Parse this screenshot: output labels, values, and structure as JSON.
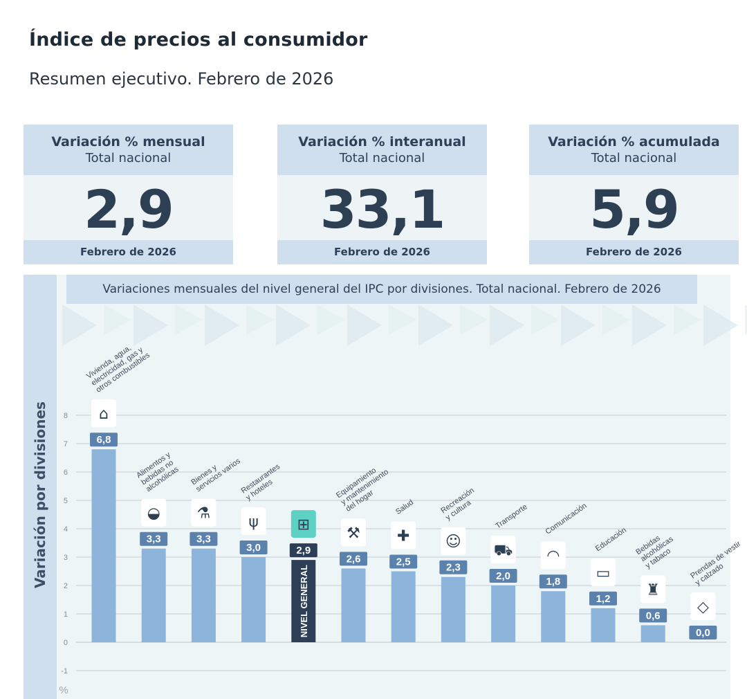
{
  "header": {
    "title": "Índice de precios al consumidor",
    "subtitle": "Resumen ejecutivo. Febrero de 2026"
  },
  "stats": [
    {
      "title": "Variación % mensual",
      "subtitle": "Total nacional",
      "value": "2,9",
      "footer": "Febrero de 2026"
    },
    {
      "title": "Variación % interanual",
      "subtitle": "Total nacional",
      "value": "33,1",
      "footer": "Febrero de 2026"
    },
    {
      "title": "Variación % acumulada",
      "subtitle": "Total nacional",
      "value": "5,9",
      "footer": "Febrero de 2026"
    }
  ],
  "colors": {
    "bar": "#8db4db",
    "highlight_bar": "#2d3f56",
    "label_bg": "#5b82ad",
    "highlight_label_bg": "#2d3f56",
    "icon_highlight": "#5fd0c4"
  },
  "chart_data": {
    "type": "bar",
    "title": "Variaciones mensuales del nivel general del IPC por divisiones. Total nacional. Febrero de 2026",
    "ylabel": "Variación por divisiones",
    "yunit": "%",
    "ylim": [
      -1,
      8
    ],
    "yticks": [
      "-1",
      "0",
      "1",
      "2",
      "3",
      "4",
      "5",
      "6",
      "7",
      "8"
    ],
    "grid": true,
    "categories": [
      "Vivienda, agua, electricidad, gas y otros combustibles",
      "Alimentos y bebidas no alcohólicas",
      "Bienes y servicios varios",
      "Restaurantes y hoteles",
      "NIVEL GENERAL",
      "Equipamiento y mantenimiento del hogar",
      "Salud",
      "Recreación y cultura",
      "Transporte",
      "Comunicación",
      "Educación",
      "Bebidas alcohólicas y tabaco",
      "Prendas de vestir y calzado"
    ],
    "values": [
      6.8,
      3.3,
      3.3,
      3.0,
      2.9,
      2.6,
      2.5,
      2.3,
      2.0,
      1.8,
      1.2,
      0.6,
      0.0
    ],
    "value_labels": [
      "6,8",
      "3,3",
      "3,3",
      "3,0",
      "2,9",
      "2,6",
      "2,5",
      "2,3",
      "2,0",
      "1,8",
      "1,2",
      "0,6",
      "0,0"
    ],
    "category_label_lines": [
      [
        "Vivienda, agua,",
        "electricidad, gas y",
        "otros combustibles"
      ],
      [
        "Alimentos y",
        "bebidas no",
        "alcohólicas"
      ],
      [
        "Bienes y",
        "servicios varios"
      ],
      [
        "Restaurantes",
        "y hoteles"
      ],
      [],
      [
        "Equipamiento",
        "y mantenimiento",
        "del hogar"
      ],
      [
        "Salud"
      ],
      [
        "Recreación",
        "y cultura"
      ],
      [
        "Transporte"
      ],
      [
        "Comunicación"
      ],
      [
        "Educación"
      ],
      [
        "Bebidas",
        "alcohólicas",
        "y tabaco"
      ],
      [
        "Prendas de vestir",
        "y calzado"
      ]
    ],
    "bar_inner_label": "NIVEL GENERAL",
    "highlight_index": 4,
    "icons": [
      "house-energy-icon",
      "food-basket-icon",
      "personal-care-icon",
      "restaurant-hotel-icon",
      "shopping-basket-icon",
      "tools-icon",
      "health-cross-icon",
      "theatre-masks-icon",
      "car-icon",
      "wifi-icon",
      "book-icon",
      "bottle-glass-icon",
      "tshirt-icon"
    ]
  }
}
